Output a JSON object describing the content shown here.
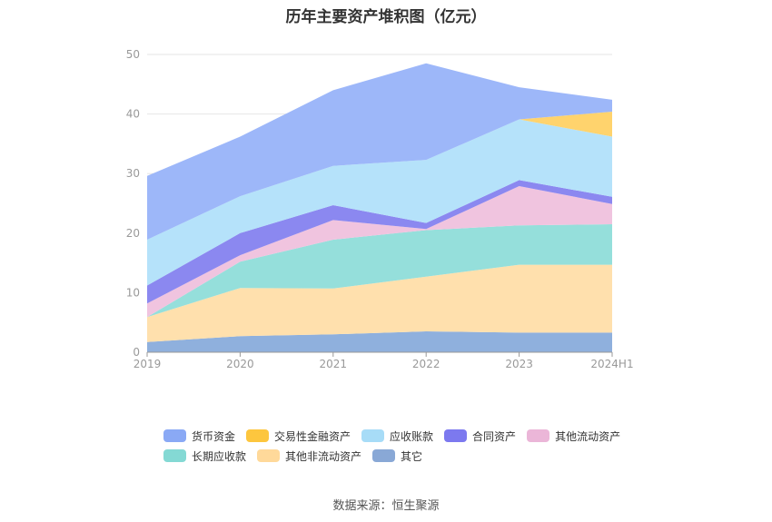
{
  "title": "历年主要资产堆积图（亿元）",
  "source": "数据来源：恒生聚源",
  "chart_data": {
    "type": "area",
    "stacked": true,
    "categories": [
      "2019",
      "2020",
      "2021",
      "2022",
      "2023",
      "2024H1"
    ],
    "ylim": [
      0,
      50
    ],
    "yticks": [
      0,
      10,
      20,
      30,
      40,
      50
    ],
    "grid": true,
    "legend_position": "bottom",
    "series": [
      {
        "name": "其它",
        "color": "#8fb0dd",
        "values": [
          1.7,
          2.7,
          3.0,
          3.5,
          3.3,
          3.3
        ]
      },
      {
        "name": "其他非流动资产",
        "color": "#ffe0ad",
        "values": [
          4.2,
          8.1,
          7.7,
          9.2,
          11.4,
          11.4
        ]
      },
      {
        "name": "长期应收款",
        "color": "#95dfdb",
        "values": [
          0.0,
          4.4,
          8.2,
          7.8,
          6.6,
          6.8
        ]
      },
      {
        "name": "其他流动资产",
        "color": "#f0c4df",
        "values": [
          2.3,
          1.1,
          3.3,
          0.2,
          6.6,
          3.4
        ]
      },
      {
        "name": "合同资产",
        "color": "#8b88f0",
        "values": [
          3.0,
          3.7,
          2.5,
          1.0,
          1.0,
          1.2
        ]
      },
      {
        "name": "应收账款",
        "color": "#b5e2fa",
        "values": [
          7.7,
          6.2,
          6.6,
          10.6,
          10.2,
          10.1
        ]
      },
      {
        "name": "交易性金融资产",
        "color": "#ffd36d",
        "values": [
          0.0,
          0.0,
          0.0,
          0.0,
          0.0,
          4.2
        ]
      },
      {
        "name": "货币资金",
        "color": "#9db7f9",
        "values": [
          10.7,
          10.0,
          12.7,
          16.2,
          5.4,
          2.0
        ]
      }
    ],
    "legend": [
      [
        {
          "name": "货币资金",
          "color": "#8aa9f5"
        },
        {
          "name": "交易性金融资产",
          "color": "#fdc63e"
        },
        {
          "name": "应收账款",
          "color": "#a7dcf7"
        },
        {
          "name": "合同资产",
          "color": "#7c79ef"
        },
        {
          "name": "其他流动资产",
          "color": "#ebb6d8"
        }
      ],
      [
        {
          "name": "长期应收款",
          "color": "#84d9d4"
        },
        {
          "name": "其他非流动资产",
          "color": "#ffd99a"
        },
        {
          "name": "其它",
          "color": "#89a8d6"
        }
      ]
    ]
  }
}
